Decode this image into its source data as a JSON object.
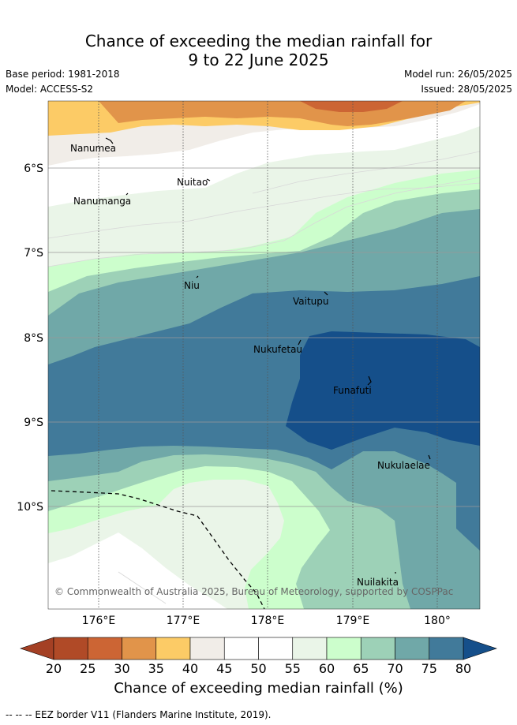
{
  "title": {
    "line1": "Chance of exceeding the median rainfall for",
    "line2": "9 to 22 June 2025"
  },
  "meta": {
    "base_period": "Base period: 1981-2018",
    "model": "Model: ACCESS-S2",
    "model_run": "Model run: 26/05/2025",
    "issued": "Issued: 28/05/2025"
  },
  "map": {
    "lat_labels": [
      "6°S",
      "7°S",
      "8°S",
      "9°S",
      "10°S"
    ],
    "lon_labels": [
      "176°E",
      "177°E",
      "178°E",
      "179°E",
      "180°"
    ],
    "places": [
      {
        "id": "nanumea",
        "name": "Nanumea"
      },
      {
        "id": "nuitao",
        "name": "Nuitao"
      },
      {
        "id": "nanumanga",
        "name": "Nanumanga"
      },
      {
        "id": "niu",
        "name": "Niu"
      },
      {
        "id": "vaitupu",
        "name": "Vaitupu"
      },
      {
        "id": "nukufetau",
        "name": "Nukufetau"
      },
      {
        "id": "funafuti",
        "name": "Funafuti"
      },
      {
        "id": "nukulaelae",
        "name": "Nukulaelae"
      },
      {
        "id": "nuilakita",
        "name": "Nuilakita"
      }
    ],
    "credit": "© Commonwealth of Australia 2025, Bureau of Meteorology, supported by COSPPac"
  },
  "colorbar": {
    "ticks": [
      "20",
      "25",
      "30",
      "35",
      "40",
      "45",
      "50",
      "55",
      "60",
      "65",
      "70",
      "75",
      "80"
    ],
    "colors": [
      "#b04a27",
      "#cc6534",
      "#e1944a",
      "#fccb66",
      "#f1ede8",
      "#ffffff",
      "#ffffff",
      "#eaf5e8",
      "#ccfecc",
      "#9dd1b7",
      "#70a8a8",
      "#417a9a"
    ],
    "under_color": "#a44024",
    "over_color": "#154f8a",
    "label": "Chance of exceeding median rainfall (%)"
  },
  "footer": {
    "eez_note": "-- -- -- EEZ border V11 (Flanders Marine Institute, 2019)."
  }
}
